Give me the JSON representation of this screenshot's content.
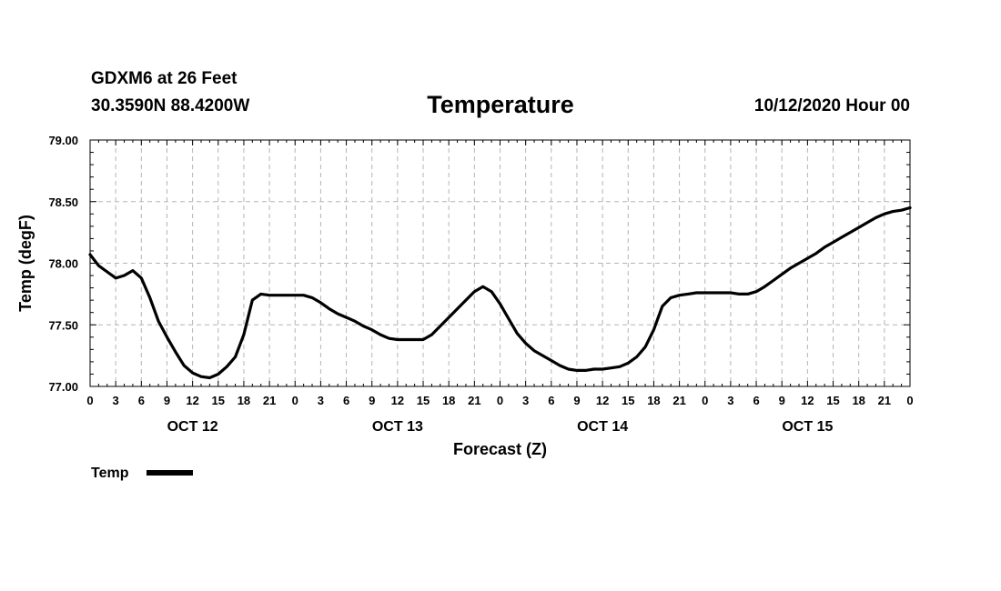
{
  "header": {
    "station": "GDXM6 at 26 Feet",
    "coords": "30.3590N 88.4200W",
    "title": "Temperature",
    "run_time": "10/12/2020 Hour 00"
  },
  "chart_data": {
    "type": "line",
    "title": "Temperature",
    "xlabel": "Forecast (Z)",
    "ylabel": "Temp (degF)",
    "ylim": [
      77.0,
      79.0
    ],
    "xlim_hours": [
      0,
      96
    ],
    "x_unit": "forecast hour",
    "grid": true,
    "legend": "bottom-left",
    "y_ticks": [
      "77.00",
      "77.50",
      "78.00",
      "78.50",
      "79.00"
    ],
    "x_tick_labels": [
      "0",
      "3",
      "6",
      "9",
      "12",
      "15",
      "18",
      "21",
      "0",
      "3",
      "6",
      "9",
      "12",
      "15",
      "18",
      "21",
      "0",
      "3",
      "6",
      "9",
      "12",
      "15",
      "18",
      "21",
      "0",
      "3",
      "6",
      "9",
      "12",
      "15",
      "18",
      "21",
      "0"
    ],
    "day_labels": [
      "OCT 12",
      "OCT 13",
      "OCT 14",
      "OCT 15"
    ],
    "series": [
      {
        "name": "Temp",
        "color": "#000000",
        "x": [
          0,
          1,
          2,
          3,
          4,
          5,
          6,
          7,
          8,
          9,
          10,
          11,
          12,
          13,
          14,
          15,
          16,
          17,
          18,
          19,
          20,
          21,
          22,
          23,
          24,
          25,
          26,
          27,
          28,
          29,
          30,
          31,
          32,
          33,
          34,
          35,
          36,
          37,
          38,
          39,
          40,
          41,
          42,
          43,
          44,
          45,
          46,
          47,
          48,
          49,
          50,
          51,
          52,
          53,
          54,
          55,
          56,
          57,
          58,
          59,
          60,
          61,
          62,
          63,
          64,
          65,
          66,
          67,
          68,
          69,
          70,
          71,
          72,
          73,
          74,
          75,
          76,
          77,
          78,
          79,
          80,
          81,
          82,
          83,
          84,
          85,
          86,
          87,
          88,
          89,
          90,
          91,
          92,
          93,
          94,
          95,
          96
        ],
        "values": [
          78.07,
          77.98,
          77.93,
          77.88,
          77.9,
          77.94,
          77.88,
          77.72,
          77.53,
          77.4,
          77.28,
          77.17,
          77.11,
          77.08,
          77.07,
          77.1,
          77.16,
          77.24,
          77.42,
          77.7,
          77.75,
          77.74,
          77.74,
          77.74,
          77.74,
          77.74,
          77.72,
          77.68,
          77.63,
          77.59,
          77.56,
          77.53,
          77.49,
          77.46,
          77.42,
          77.39,
          77.38,
          77.38,
          77.38,
          77.38,
          77.42,
          77.49,
          77.56,
          77.63,
          77.7,
          77.77,
          77.81,
          77.77,
          77.67,
          77.55,
          77.43,
          77.35,
          77.29,
          77.25,
          77.21,
          77.17,
          77.14,
          77.13,
          77.13,
          77.14,
          77.14,
          77.15,
          77.16,
          77.19,
          77.24,
          77.32,
          77.46,
          77.65,
          77.72,
          77.74,
          77.75,
          77.76,
          77.76,
          77.76,
          77.76,
          77.76,
          77.75,
          77.75,
          77.77,
          77.81,
          77.86,
          77.91,
          77.96,
          78.0,
          78.04,
          78.08,
          78.13,
          78.17,
          78.21,
          78.25,
          78.29,
          78.33,
          78.37,
          78.4,
          78.42,
          78.43,
          78.45
        ]
      }
    ]
  }
}
